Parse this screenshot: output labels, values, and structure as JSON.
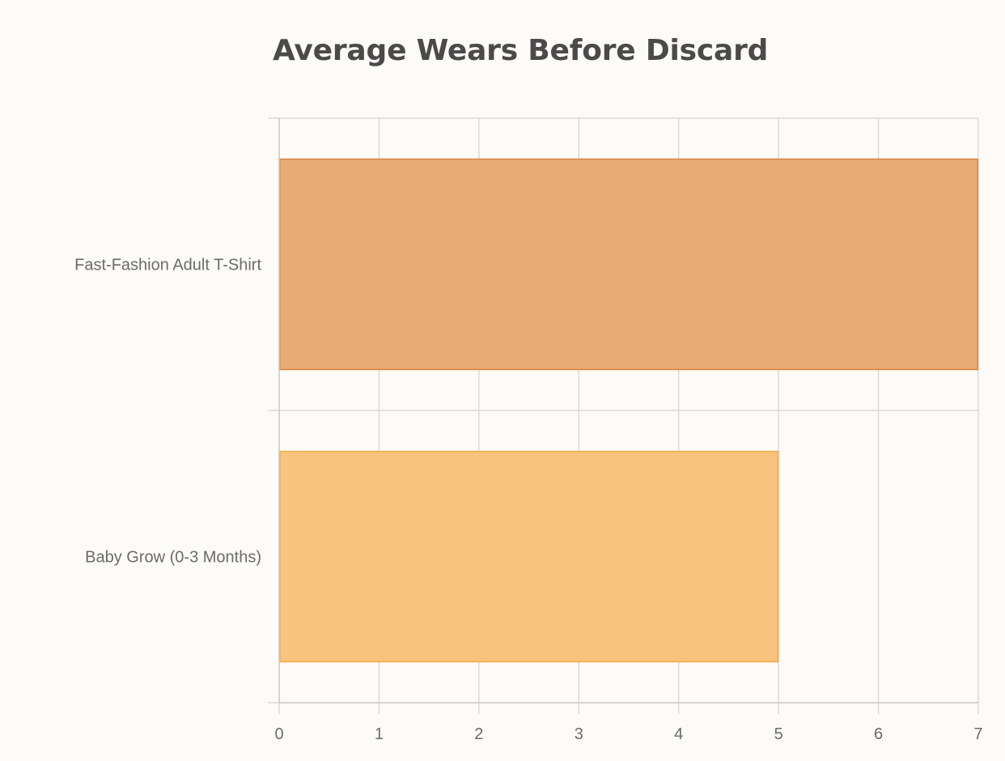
{
  "chart_data": {
    "type": "bar",
    "orientation": "horizontal",
    "title": "Average Wears Before Discard",
    "categories": [
      "Fast-Fashion Adult T-Shirt",
      "Baby Grow (0-3 Months)"
    ],
    "values": [
      7,
      5
    ],
    "colors": {
      "fill": [
        "#e8aa76",
        "#f8c37e"
      ],
      "border": [
        "#d9853f",
        "#f0a94a"
      ]
    },
    "xlim": [
      0,
      7
    ],
    "xticks": [
      "0",
      "1",
      "2",
      "3",
      "4",
      "5",
      "6",
      "7"
    ],
    "grid": true,
    "legend": "none"
  }
}
